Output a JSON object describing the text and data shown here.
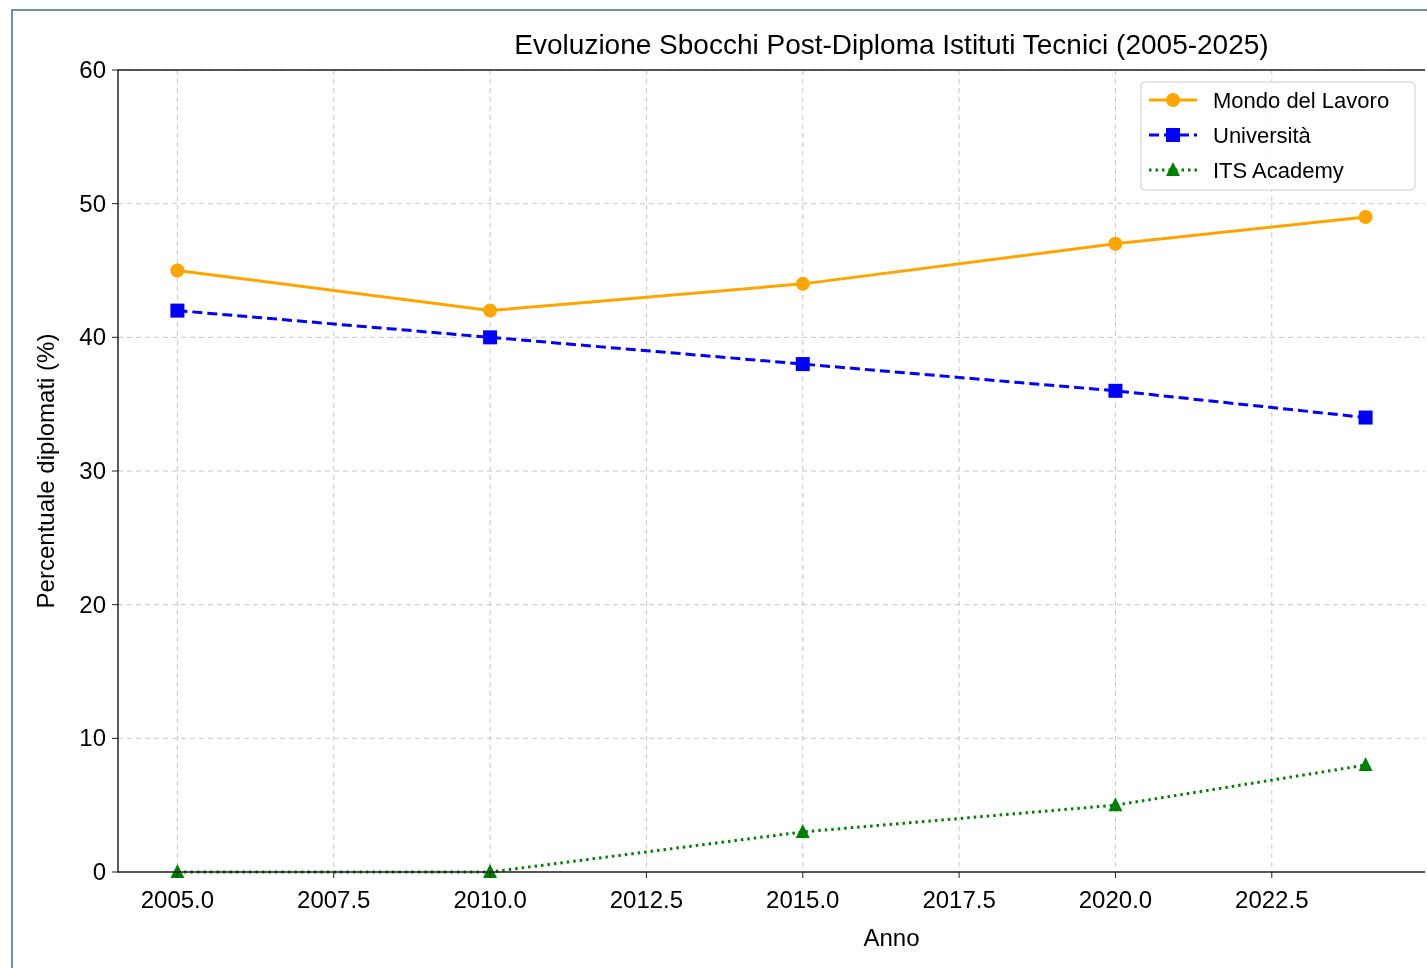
{
  "chart_data": {
    "type": "line",
    "title": "Evoluzione Sbocchi Post-Diploma Istituti Tecnici (2005-2025)",
    "xlabel": "Anno",
    "ylabel": "Percentuale diplomati (%)",
    "x": [
      2005,
      2010,
      2015,
      2020,
      2024
    ],
    "series": [
      {
        "name": "Mondo del Lavoro",
        "color": "#ffa500",
        "values": [
          45,
          42,
          44,
          47,
          49
        ],
        "marker": "circle",
        "line_style": "solid"
      },
      {
        "name": "Università",
        "color": "#0000ff",
        "values": [
          42,
          40,
          38,
          36,
          34
        ],
        "marker": "square",
        "line_style": "dashed"
      },
      {
        "name": "ITS Academy",
        "color": "#008000",
        "values": [
          0,
          0,
          3,
          5,
          8
        ],
        "marker": "triangle",
        "line_style": "dotted"
      }
    ],
    "xlim": [
      2004.05,
      2024.95
    ],
    "xticks": [
      {
        "value": 2005,
        "label": "2005.0"
      },
      {
        "value": 2007.5,
        "label": "2007.5"
      },
      {
        "value": 2010,
        "label": "2010.0"
      },
      {
        "value": 2012.5,
        "label": "2012.5"
      },
      {
        "value": 2015,
        "label": "2015.0"
      },
      {
        "value": 2017.5,
        "label": "2017.5"
      },
      {
        "value": 2020,
        "label": "2020.0"
      },
      {
        "value": 2022.5,
        "label": "2022.5"
      }
    ],
    "ylim": [
      0,
      60
    ],
    "yticks": [
      0,
      10,
      20,
      30,
      40,
      50,
      60
    ],
    "grid": true,
    "legend": "top right"
  }
}
